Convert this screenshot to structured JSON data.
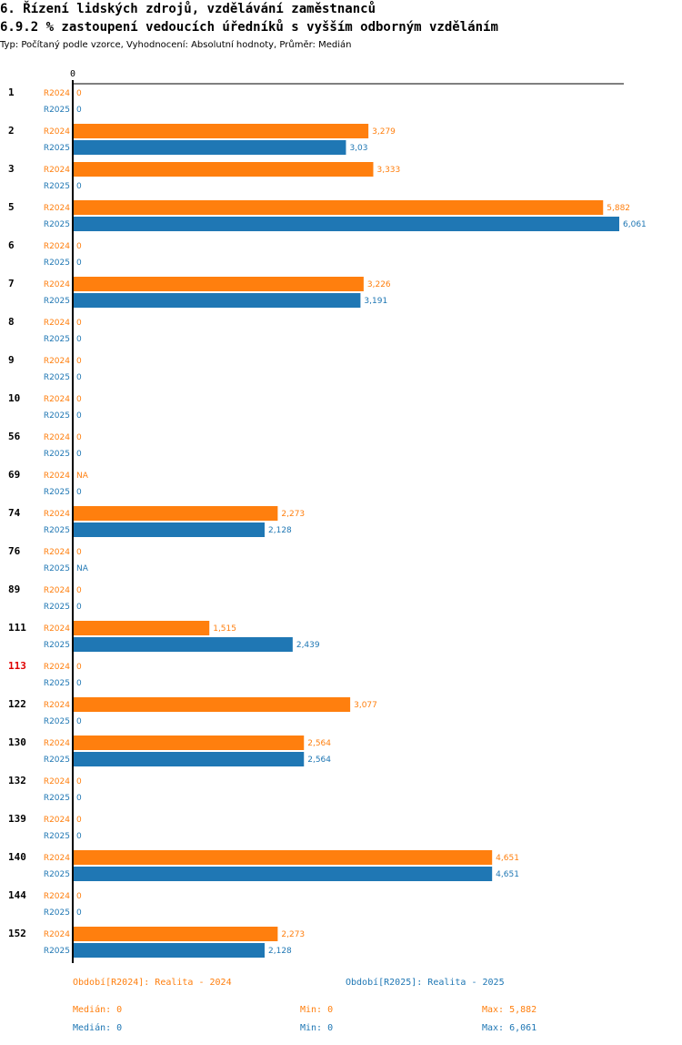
{
  "header": {
    "title": "6. Řízení lidských zdrojů, vzdělávání zaměstnanců",
    "subtitle": "6.9.2 % zastoupení vedoucích úředníků s vyšším odborným vzděláním",
    "meta": "Typ: Počítaný podle vzorce, Vyhodnocení: Absolutní hodnoty, Průměr: Medián"
  },
  "colors": {
    "r2024": "#ff7f0e",
    "r2025": "#1f77b4",
    "highlight": "#e00000",
    "axis": "#000000"
  },
  "chart_data": {
    "type": "bar",
    "orientation": "horizontal",
    "title": "6.9.2 % zastoupení vedoucích úředníků s vyšším odborným vzděláním",
    "axis_zero_label": "0",
    "xlim": [
      0,
      6.061
    ],
    "categories": [
      "1",
      "2",
      "3",
      "5",
      "6",
      "7",
      "8",
      "9",
      "10",
      "56",
      "69",
      "74",
      "76",
      "89",
      "111",
      "113",
      "122",
      "130",
      "132",
      "139",
      "140",
      "144",
      "152"
    ],
    "highlight_categories": [
      "113"
    ],
    "series": [
      {
        "name": "R2024",
        "values": [
          0,
          3.279,
          3.333,
          5.882,
          0,
          3.226,
          0,
          0,
          0,
          0,
          null,
          2.273,
          0,
          0,
          1.515,
          0,
          3.077,
          2.564,
          0,
          0,
          4.651,
          0,
          2.273
        ],
        "labels": [
          "0",
          "3,279",
          "3,333",
          "5,882",
          "0",
          "3,226",
          "0",
          "0",
          "0",
          "0",
          "NA",
          "2,273",
          "0",
          "0",
          "1,515",
          "0",
          "3,077",
          "2,564",
          "0",
          "0",
          "4,651",
          "0",
          "2,273"
        ]
      },
      {
        "name": "R2025",
        "values": [
          0,
          3.03,
          0,
          6.061,
          0,
          3.191,
          0,
          0,
          0,
          0,
          0,
          2.128,
          null,
          0,
          2.439,
          0,
          0,
          2.564,
          0,
          0,
          4.651,
          0,
          2.128
        ],
        "labels": [
          "0",
          "3,03",
          "0",
          "6,061",
          "0",
          "3,191",
          "0",
          "0",
          "0",
          "0",
          "0",
          "2,128",
          "NA",
          "0",
          "2,439",
          "0",
          "0",
          "2,564",
          "0",
          "0",
          "4,651",
          "0",
          "2,128"
        ]
      }
    ]
  },
  "legend": {
    "r2024": "Období[R2024]: Realita - 2024",
    "r2025": "Období[R2025]: Realita - 2025"
  },
  "stats": {
    "r2024": {
      "median": "Medián: 0",
      "min": "Min: 0",
      "max": "Max: 5,882"
    },
    "r2025": {
      "median": "Medián: 0",
      "min": "Min: 0",
      "max": "Max: 6,061"
    }
  }
}
